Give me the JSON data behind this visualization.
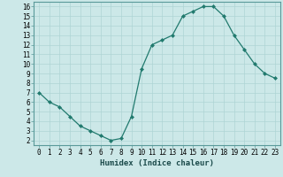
{
  "x": [
    0,
    1,
    2,
    3,
    4,
    5,
    6,
    7,
    8,
    9,
    10,
    11,
    12,
    13,
    14,
    15,
    16,
    17,
    18,
    19,
    20,
    21,
    22,
    23
  ],
  "y": [
    7,
    6,
    5.5,
    4.5,
    3.5,
    3,
    2.5,
    2,
    2.2,
    4.5,
    9.5,
    12,
    12.5,
    13,
    15,
    15.5,
    16,
    16,
    15,
    13,
    11.5,
    10,
    9,
    8.5
  ],
  "xlabel": "Humidex (Indice chaleur)",
  "xlim": [
    -0.5,
    23.5
  ],
  "ylim": [
    1.5,
    16.5
  ],
  "yticks": [
    2,
    3,
    4,
    5,
    6,
    7,
    8,
    9,
    10,
    11,
    12,
    13,
    14,
    15,
    16
  ],
  "xticks": [
    0,
    1,
    2,
    3,
    4,
    5,
    6,
    7,
    8,
    9,
    10,
    11,
    12,
    13,
    14,
    15,
    16,
    17,
    18,
    19,
    20,
    21,
    22,
    23
  ],
  "line_color": "#217a6e",
  "marker_color": "#217a6e",
  "bg_color": "#cce8e8",
  "grid_color": "#aed4d4",
  "xlabel_fontsize": 6.5,
  "tick_fontsize": 5.5
}
